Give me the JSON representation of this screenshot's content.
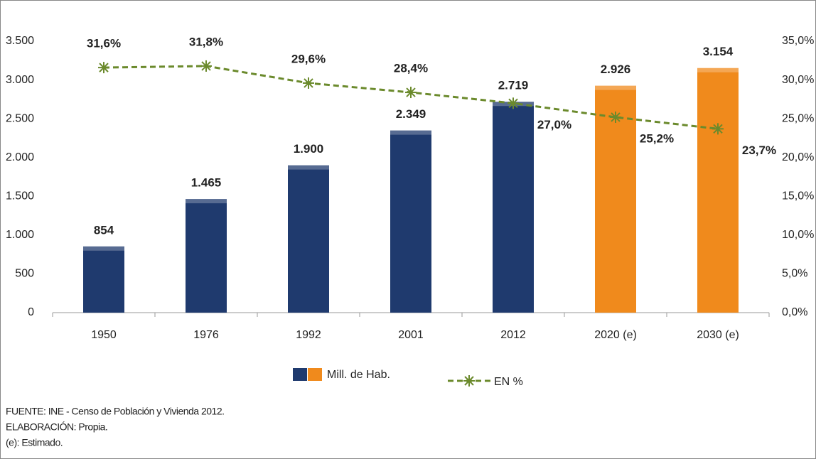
{
  "chart_data": {
    "type": "bar",
    "categories": [
      "1950",
      "1976",
      "1992",
      "2001",
      "2012",
      "2020 (e)",
      "2030 (e)"
    ],
    "series": [
      {
        "name": "Mill. de Hab.",
        "type": "bar",
        "colors": [
          "#1f3a6e",
          "#1f3a6e",
          "#1f3a6e",
          "#1f3a6e",
          "#1f3a6e",
          "#f08a1c",
          "#f08a1c"
        ],
        "values": [
          854,
          1465,
          1900,
          2349,
          2719,
          2926,
          3154
        ],
        "value_labels": [
          "854",
          "1.465",
          "1.900",
          "2.349",
          "2.719",
          "2.926",
          "3.154"
        ]
      },
      {
        "name": "EN %",
        "type": "line",
        "axis": "y2",
        "color": "#6b8a2c",
        "values": [
          31.6,
          31.8,
          29.6,
          28.4,
          27.0,
          25.2,
          23.7
        ],
        "value_labels": [
          "31,6%",
          "31,8%",
          "29,6%",
          "28,4%",
          "27,0%",
          "25,2%",
          "23,7%"
        ]
      }
    ],
    "ylim": [
      0,
      3500
    ],
    "yticks": [
      0,
      500,
      {
        "value": 1000,
        "label": "1.000"
      },
      {
        "value": 1500,
        "label": "1.500"
      },
      {
        "value": 2000,
        "label": "2.000"
      },
      {
        "value": 2500,
        "label": "2.500"
      },
      {
        "value": 3000,
        "label": "3.000"
      },
      {
        "value": 3500,
        "label": "3.500"
      }
    ],
    "y2lim": [
      0,
      35
    ],
    "y2ticks": [
      {
        "value": 0,
        "label": "0,0%"
      },
      {
        "value": 5,
        "label": "5,0%"
      },
      {
        "value": 10,
        "label": "10,0%"
      },
      {
        "value": 15,
        "label": "15,0%"
      },
      {
        "value": 20,
        "label": "20,0%"
      },
      {
        "value": 25,
        "label": "25,0%"
      },
      {
        "value": 30,
        "label": "30,0%"
      },
      {
        "value": 35,
        "label": "35,0%"
      }
    ],
    "notes": [
      "FUENTE:  INE - Censo de Población y Vivienda 2012.",
      "ELABORACIÓN:  Propia.",
      "(e): Estimado."
    ]
  }
}
